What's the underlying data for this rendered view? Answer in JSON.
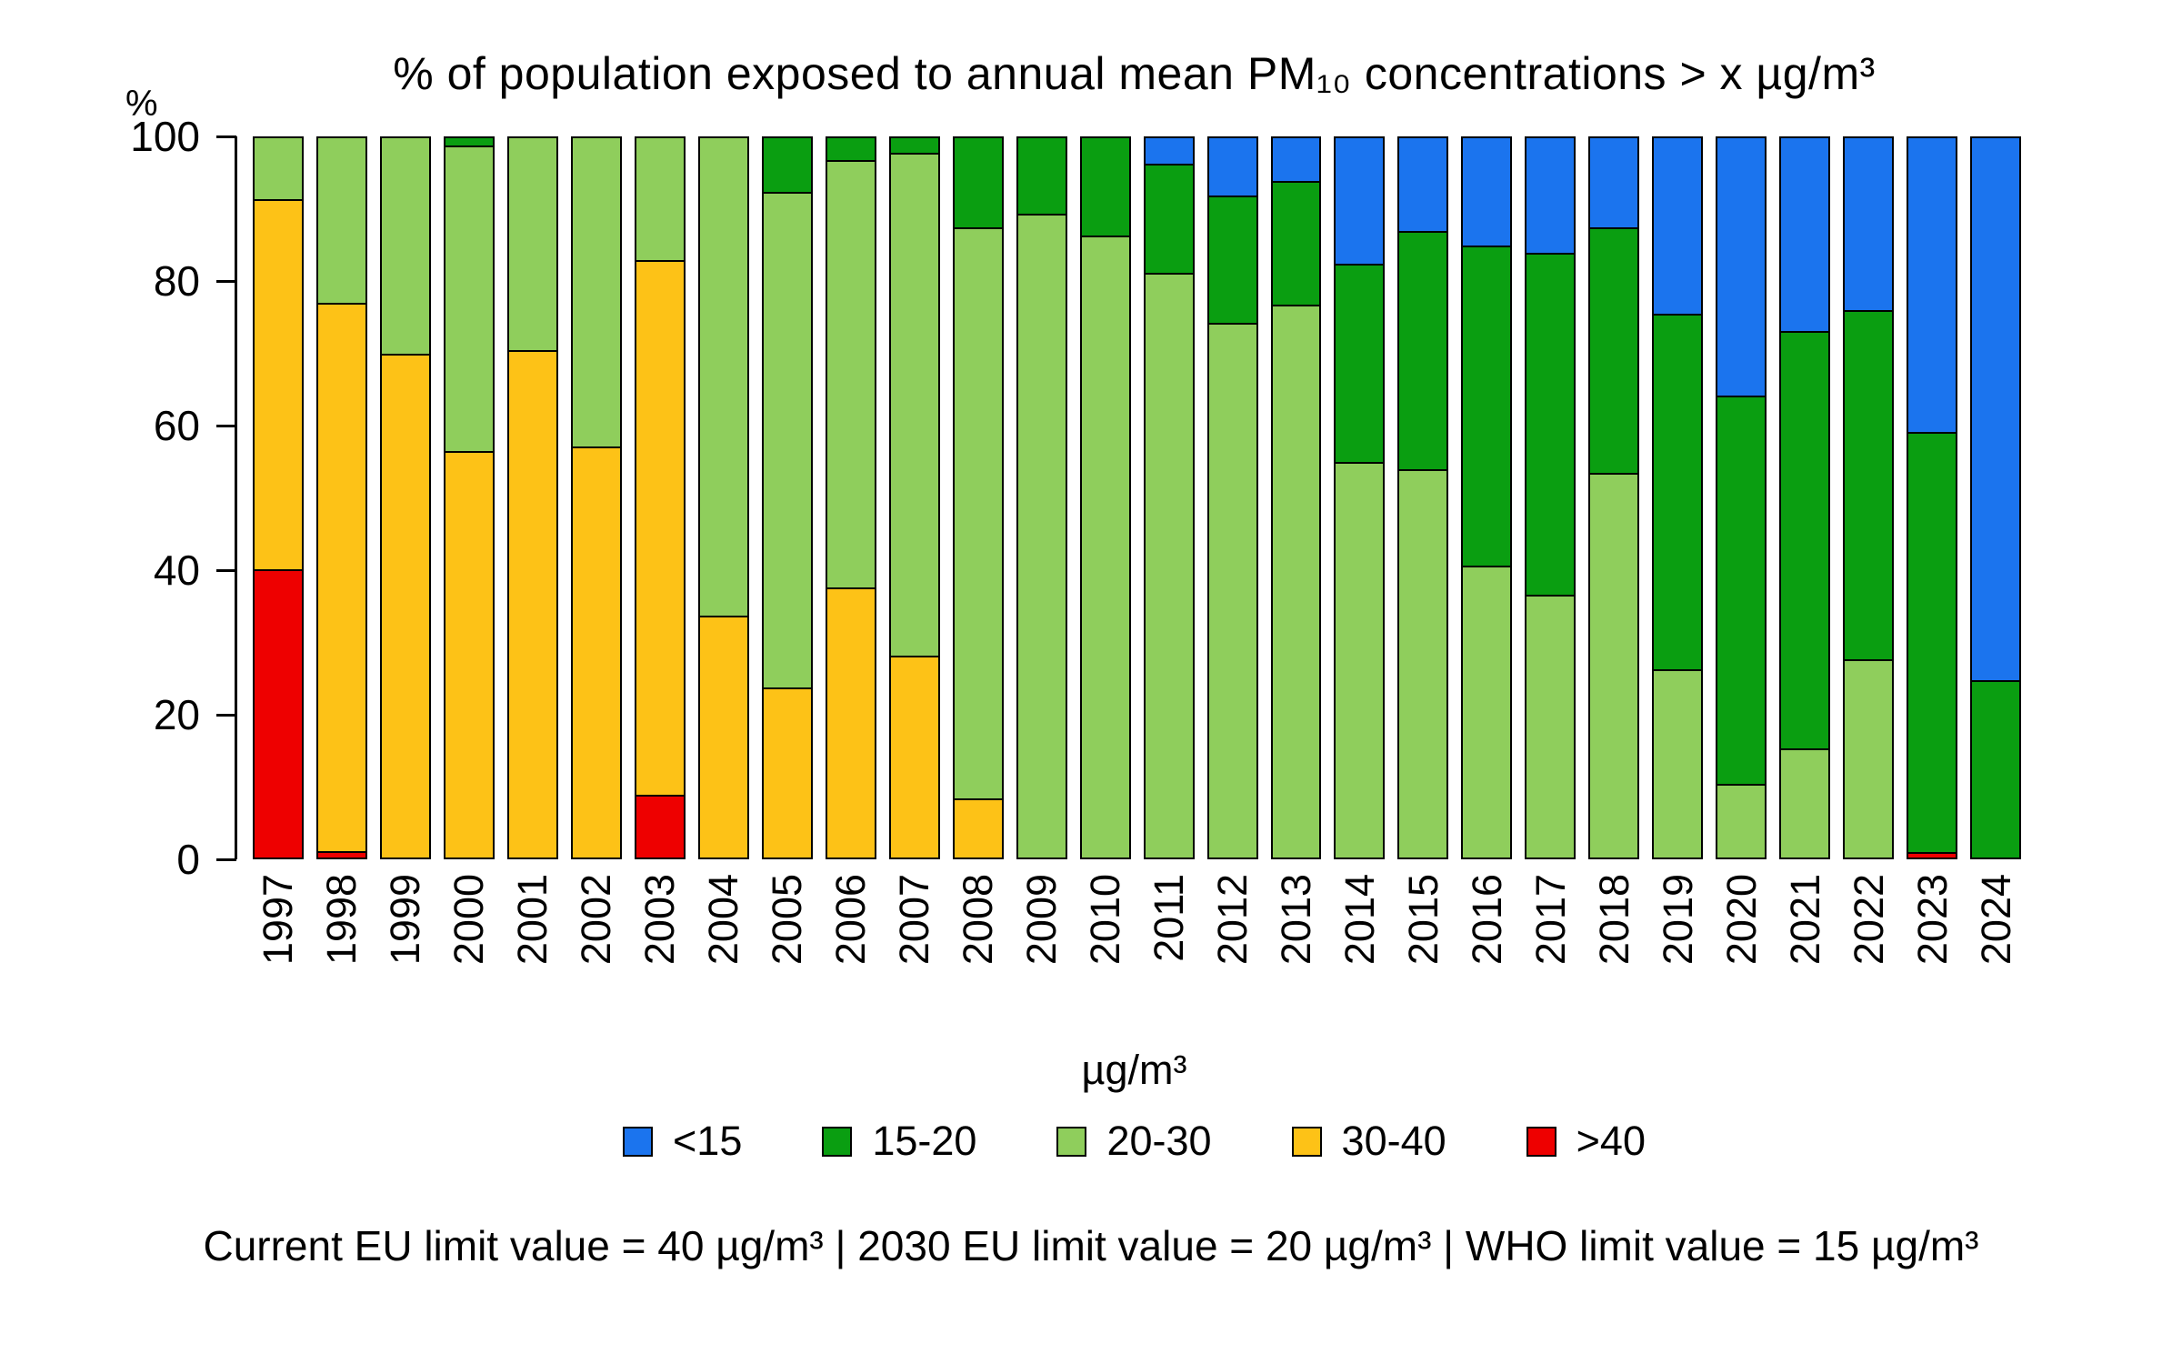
{
  "page": {
    "background": "#FFFFFF"
  },
  "chart_data": {
    "type": "bar",
    "stacked": true,
    "title": "% of population exposed to annual mean PM₁₀ concentrations > x µg/m³",
    "y_axis_label": "%",
    "ylim": [
      0,
      100
    ],
    "yticks": [
      0,
      20,
      40,
      60,
      80,
      100
    ],
    "grid": false,
    "legend_position": "bottom",
    "legend_title": "µg/m³",
    "legend_order": [
      "<15",
      "15-20",
      "20-30",
      "30-40",
      ">40"
    ],
    "categories": [
      "1997",
      "1998",
      "1999",
      "2000",
      "2001",
      "2002",
      "2003",
      "2004",
      "2005",
      "2006",
      "2007",
      "2008",
      "2009",
      "2010",
      "2011",
      "2012",
      "2013",
      "2014",
      "2015",
      "2016",
      "2017",
      "2018",
      "2019",
      "2020",
      "2021",
      "2022",
      "2023",
      "2024"
    ],
    "series": [
      {
        "name": ">40",
        "color": "#EE0000",
        "values": [
          40,
          0.7,
          0,
          0,
          0,
          0,
          8.5,
          0,
          0,
          0,
          0,
          0,
          0,
          0,
          0,
          0,
          0,
          0,
          0,
          0,
          0,
          0,
          0,
          0,
          0,
          0,
          0.5,
          0
        ]
      },
      {
        "name": "30-40",
        "color": "#FDC217",
        "values": [
          51.5,
          76.3,
          70,
          56.5,
          70.5,
          57,
          74.5,
          33.5,
          23.5,
          37.5,
          28,
          8,
          0,
          0,
          0,
          0,
          0,
          0,
          0,
          0,
          0,
          0,
          0,
          0,
          0,
          0,
          0,
          0
        ]
      },
      {
        "name": "20-30",
        "color": "#8FCE5C",
        "values": [
          8.5,
          23,
          30,
          42.5,
          29.5,
          43,
          17,
          66.5,
          69,
          59.5,
          70,
          79.5,
          89.5,
          86.5,
          81.5,
          74.5,
          77,
          55,
          54,
          40.5,
          36.5,
          53.5,
          26,
          10,
          15,
          27.5,
          0,
          0
        ]
      },
      {
        "name": "15-20",
        "color": "#0A9E11",
        "values": [
          0,
          0,
          0,
          1,
          0,
          0,
          0,
          0,
          7.5,
          3,
          2,
          12.5,
          10.5,
          13.5,
          15,
          17.5,
          17,
          27.5,
          33,
          44.5,
          47.5,
          34,
          49.5,
          54,
          58,
          48.5,
          58.5,
          24.5
        ]
      },
      {
        "name": "<15",
        "color": "#1B74EE",
        "values": [
          0,
          0,
          0,
          0,
          0,
          0,
          0,
          0,
          0,
          0,
          0,
          0,
          0,
          0,
          3.5,
          8,
          6,
          17.5,
          13,
          15,
          16,
          12.5,
          24.5,
          36,
          27,
          24,
          41,
          75.5
        ]
      }
    ],
    "footnote": "Current EU limit value = 40 µg/m³ | 2030 EU limit value = 20 µg/m³ | WHO limit value = 15 µg/m³"
  }
}
